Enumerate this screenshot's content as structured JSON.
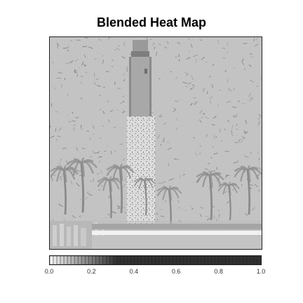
{
  "chart_data": {
    "type": "heatmap",
    "title": "Blended Heat Map",
    "xlabel": "",
    "ylabel": "",
    "grid": false,
    "legend": "none",
    "colorbar": {
      "orientation": "horizontal",
      "position": "bottom",
      "range": [
        0.0,
        1.0
      ],
      "ticks": [
        0.0,
        0.2,
        0.4,
        0.6,
        0.8,
        1.0
      ],
      "tick_labels": [
        "0.0",
        "0.2",
        "0.4",
        "0.6",
        "0.8",
        "1.0"
      ],
      "colormap": "grayscale",
      "low_color": "#f2f2f2",
      "high_color": "#303030"
    },
    "background_color": "#c9c9c9"
  }
}
